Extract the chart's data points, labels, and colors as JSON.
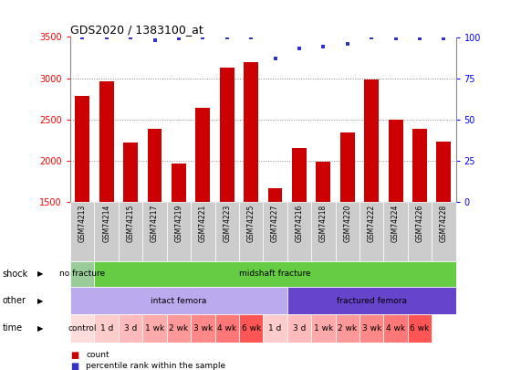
{
  "title": "GDS2020 / 1383100_at",
  "samples": [
    "GSM74213",
    "GSM74214",
    "GSM74215",
    "GSM74217",
    "GSM74219",
    "GSM74221",
    "GSM74223",
    "GSM74225",
    "GSM74227",
    "GSM74216",
    "GSM74218",
    "GSM74220",
    "GSM74222",
    "GSM74224",
    "GSM74226",
    "GSM74228"
  ],
  "counts": [
    2780,
    2960,
    2220,
    2380,
    1960,
    2640,
    3130,
    3200,
    1660,
    2150,
    1980,
    2340,
    2980,
    2500,
    2390,
    2230
  ],
  "percentile_ranks": [
    100,
    100,
    100,
    98,
    99,
    100,
    100,
    100,
    87,
    93,
    94,
    96,
    100,
    99,
    99,
    99
  ],
  "ylim_left": [
    1500,
    3500
  ],
  "ylim_right": [
    0,
    100
  ],
  "yticks_left": [
    1500,
    2000,
    2500,
    3000,
    3500
  ],
  "yticks_right": [
    0,
    25,
    50,
    75,
    100
  ],
  "bar_color": "#cc0000",
  "dot_color": "#3333cc",
  "background_color": "#ffffff",
  "grid_color": "#555555",
  "label_bg_color": "#cccccc",
  "shock_row": {
    "label": "shock",
    "segments": [
      {
        "text": "no fracture",
        "start": 0,
        "end": 1,
        "color": "#99cc99"
      },
      {
        "text": "midshaft fracture",
        "start": 1,
        "end": 16,
        "color": "#66cc44"
      }
    ]
  },
  "other_row": {
    "label": "other",
    "segments": [
      {
        "text": "intact femora",
        "start": 0,
        "end": 9,
        "color": "#bbaaee"
      },
      {
        "text": "fractured femora",
        "start": 9,
        "end": 16,
        "color": "#6644cc"
      }
    ]
  },
  "time_row": {
    "label": "time",
    "cells": [
      {
        "text": "control",
        "start": 0,
        "end": 1,
        "color": "#ffdddd"
      },
      {
        "text": "1 d",
        "start": 1,
        "end": 2,
        "color": "#ffcccc"
      },
      {
        "text": "3 d",
        "start": 2,
        "end": 3,
        "color": "#ffbbbb"
      },
      {
        "text": "1 wk",
        "start": 3,
        "end": 4,
        "color": "#ffaaaa"
      },
      {
        "text": "2 wk",
        "start": 4,
        "end": 5,
        "color": "#ff9999"
      },
      {
        "text": "3 wk",
        "start": 5,
        "end": 6,
        "color": "#ff8888"
      },
      {
        "text": "4 wk",
        "start": 6,
        "end": 7,
        "color": "#ff7777"
      },
      {
        "text": "6 wk",
        "start": 7,
        "end": 8,
        "color": "#ff5555"
      },
      {
        "text": "1 d",
        "start": 8,
        "end": 9,
        "color": "#ffcccc"
      },
      {
        "text": "3 d",
        "start": 9,
        "end": 10,
        "color": "#ffbbbb"
      },
      {
        "text": "1 wk",
        "start": 10,
        "end": 11,
        "color": "#ffaaaa"
      },
      {
        "text": "2 wk",
        "start": 11,
        "end": 12,
        "color": "#ff9999"
      },
      {
        "text": "3 wk",
        "start": 12,
        "end": 13,
        "color": "#ff8888"
      },
      {
        "text": "4 wk",
        "start": 13,
        "end": 14,
        "color": "#ff7777"
      },
      {
        "text": "6 wk",
        "start": 14,
        "end": 15,
        "color": "#ff5555"
      }
    ]
  },
  "legend_items": [
    {
      "label": "count",
      "color": "#cc0000"
    },
    {
      "label": "percentile rank within the sample",
      "color": "#3333cc"
    }
  ]
}
